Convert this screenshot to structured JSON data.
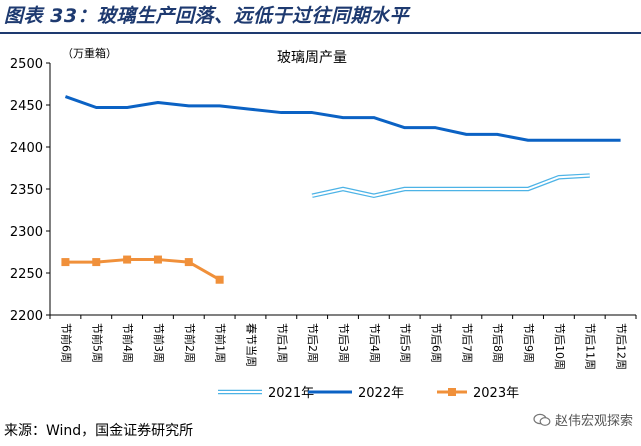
{
  "figure_title": "图表 33：玻璃生产回落、远低于过往同期水平",
  "source": "来源：Wind，国金证券研究所",
  "watermark": "赵伟宏观探索",
  "watermark_icon": "wechat-icon",
  "colors": {
    "title": "#1e3a70",
    "series_2021": "#4db3e6",
    "series_2022": "#0b62c4",
    "series_2023": "#f0903a"
  },
  "chart_data": {
    "type": "line",
    "title": "玻璃周产量",
    "ylabel": "（万重箱）",
    "ylim": [
      2200,
      2500
    ],
    "yticks": [
      2200,
      2250,
      2300,
      2350,
      2400,
      2450,
      2500
    ],
    "grid": false,
    "legend_position": "bottom",
    "categories": [
      "节前6周",
      "节前5周",
      "节前4周",
      "节前3周",
      "节前2周",
      "节前1周",
      "春节当周",
      "节后1周",
      "节后2周",
      "节后3周",
      "节后4周",
      "节后5周",
      "节后6周",
      "节后7周",
      "节后8周",
      "节后9周",
      "节后10周",
      "节后11周",
      "节后12周"
    ],
    "series": [
      {
        "name": "2021年",
        "style": "double",
        "values": [
          null,
          null,
          null,
          null,
          null,
          null,
          null,
          null,
          2342,
          2350,
          2342,
          2350,
          2350,
          2350,
          2350,
          2350,
          2364,
          2366,
          null
        ]
      },
      {
        "name": "2022年",
        "style": "solid",
        "values": [
          2460,
          2447,
          2447,
          2453,
          2449,
          2449,
          2445,
          2441,
          2441,
          2435,
          2435,
          2423,
          2423,
          2415,
          2415,
          2408,
          2408,
          2408,
          2408
        ]
      },
      {
        "name": "2023年",
        "style": "marker",
        "values": [
          2263,
          2263,
          2266,
          2266,
          2263,
          2242,
          null,
          null,
          null,
          null,
          null,
          null,
          null,
          null,
          null,
          null,
          null,
          null,
          null
        ]
      }
    ]
  }
}
